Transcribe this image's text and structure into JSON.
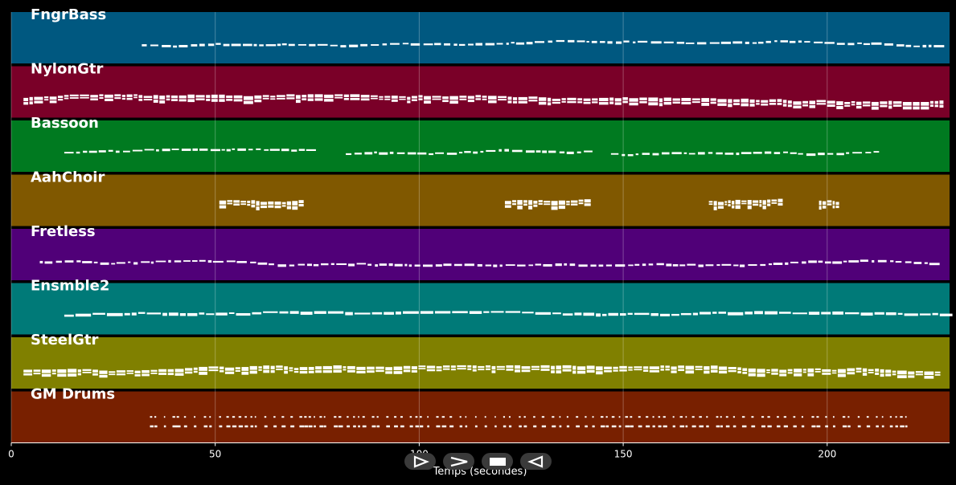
{
  "chart_data": {
    "type": "piano-roll",
    "xlabel": "Temps (secondes)",
    "xlim": [
      0,
      230
    ],
    "xticks": [
      0,
      50,
      100,
      150,
      200
    ],
    "grid": true,
    "tracks": [
      {
        "name": "FngrBass",
        "color": "#005880",
        "start": 32,
        "end": 228,
        "density": "sparse"
      },
      {
        "name": "NylonGtr",
        "color": "#7a0028",
        "start": 3,
        "end": 228,
        "density": "dense"
      },
      {
        "name": "Bassoon",
        "color": "#007a20",
        "start": 13,
        "end": 212,
        "density": "sparse",
        "segments": [
          [
            13,
            73
          ],
          [
            82,
            142
          ],
          [
            147,
            212
          ]
        ]
      },
      {
        "name": "AahChoir",
        "color": "#805800",
        "start": 51,
        "end": 203,
        "density": "chord",
        "segments": [
          [
            51,
            71
          ],
          [
            121,
            141
          ],
          [
            171,
            188
          ],
          [
            198,
            203
          ]
        ]
      },
      {
        "name": "Fretless",
        "color": "#500078",
        "start": 7,
        "end": 226,
        "density": "sparse"
      },
      {
        "name": "Ensmble2",
        "color": "#007a78",
        "start": 13,
        "end": 228,
        "density": "medium"
      },
      {
        "name": "SteelGtr",
        "color": "#808000",
        "start": 3,
        "end": 228,
        "density": "dense"
      },
      {
        "name": "GM Drums",
        "color": "#782000",
        "start": 34,
        "end": 220,
        "density": "drums"
      }
    ]
  },
  "controls": [
    {
      "name": "play-button",
      "icon": "play-outline-icon"
    },
    {
      "name": "fast-forward-button",
      "icon": "chevron-right-icon"
    },
    {
      "name": "stop-button",
      "icon": "stop-icon"
    },
    {
      "name": "rewind-button",
      "icon": "play-reverse-icon"
    }
  ]
}
